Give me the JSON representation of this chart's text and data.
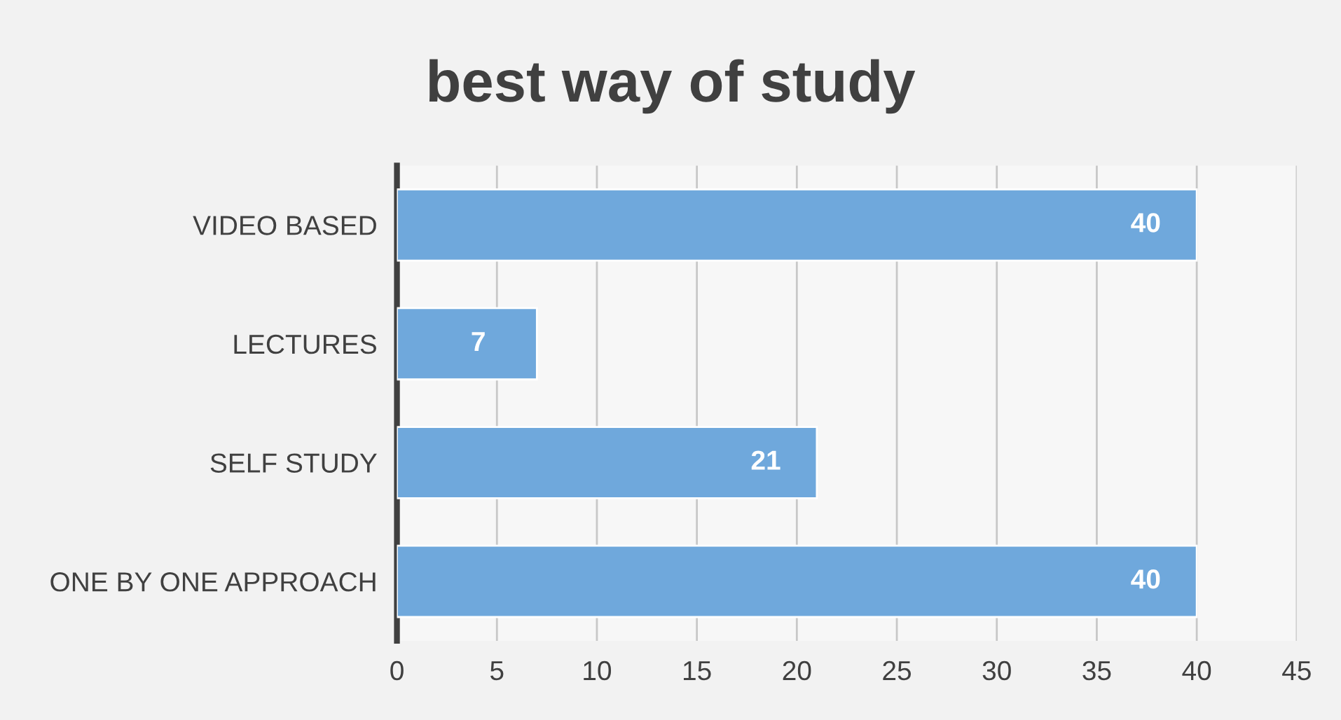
{
  "chart_data": {
    "type": "bar",
    "orientation": "horizontal",
    "title": "best way of study",
    "categories": [
      "VIDEO BASED",
      "LECTURES",
      "SELF STUDY",
      "ONE BY ONE APPROACH"
    ],
    "values": [
      40,
      7,
      21,
      40
    ],
    "color": "#6fa8dc",
    "xlim": [
      0,
      45
    ],
    "xticks": [
      0,
      5,
      10,
      15,
      20,
      25,
      30,
      35,
      40,
      45
    ],
    "grid": "x",
    "data_labels": true
  }
}
